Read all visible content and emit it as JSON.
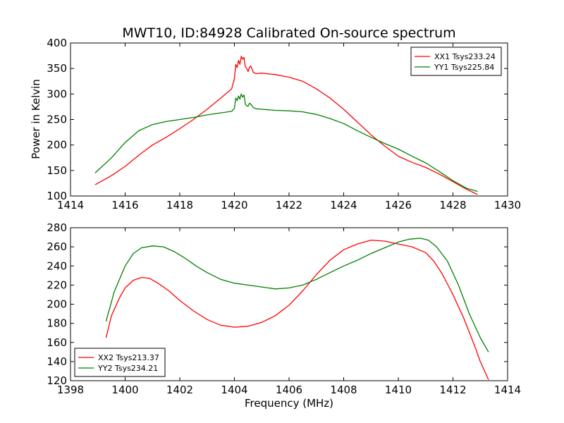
{
  "figure": {
    "title": "MWT10, ID:84928 Calibrated On-source spectrum",
    "ylabel": "Power in Kelvin",
    "xlabel": "Frequency (MHz)"
  },
  "chart_data": [
    {
      "type": "line",
      "xlim": [
        1414,
        1430
      ],
      "ylim": [
        100,
        400
      ],
      "xticks": [
        1414,
        1416,
        1418,
        1420,
        1422,
        1424,
        1426,
        1428,
        1430
      ],
      "yticks": [
        100,
        150,
        200,
        250,
        300,
        350,
        400
      ],
      "grid": false,
      "legend_position": "top-right",
      "series": [
        {
          "name": "XX1 Tsys233.24",
          "color": "#ff0000",
          "x": [
            1414.9,
            1415.5,
            1416.0,
            1416.5,
            1417.0,
            1417.5,
            1418.0,
            1418.5,
            1419.0,
            1419.5,
            1419.9,
            1420.0,
            1420.05,
            1420.1,
            1420.15,
            1420.2,
            1420.25,
            1420.3,
            1420.35,
            1420.4,
            1420.45,
            1420.5,
            1420.55,
            1420.6,
            1420.7,
            1420.8,
            1421.0,
            1421.5,
            1422.0,
            1422.5,
            1423.0,
            1423.5,
            1424.0,
            1424.5,
            1425.0,
            1425.5,
            1426.0,
            1426.5,
            1427.0,
            1427.5,
            1428.0,
            1428.5,
            1428.9
          ],
          "y": [
            122,
            140,
            158,
            180,
            200,
            215,
            232,
            250,
            270,
            292,
            310,
            330,
            358,
            352,
            366,
            358,
            374,
            368,
            372,
            354,
            350,
            344,
            352,
            355,
            342,
            340,
            341,
            338,
            333,
            325,
            310,
            292,
            270,
            245,
            220,
            198,
            178,
            166,
            156,
            143,
            128,
            113,
            103
          ]
        },
        {
          "name": "YY1 Tsys225.84",
          "color": "#008000",
          "x": [
            1414.9,
            1415.5,
            1416.0,
            1416.5,
            1417.0,
            1417.5,
            1418.0,
            1418.5,
            1419.0,
            1419.5,
            1419.9,
            1420.0,
            1420.05,
            1420.1,
            1420.15,
            1420.2,
            1420.25,
            1420.3,
            1420.35,
            1420.4,
            1420.45,
            1420.5,
            1420.55,
            1420.6,
            1420.7,
            1420.8,
            1421.0,
            1421.5,
            1422.0,
            1422.5,
            1423.0,
            1423.5,
            1424.0,
            1424.5,
            1425.0,
            1425.5,
            1426.0,
            1426.5,
            1427.0,
            1427.5,
            1428.0,
            1428.5,
            1428.9
          ],
          "y": [
            145,
            175,
            205,
            228,
            240,
            246,
            250,
            254,
            259,
            263,
            266,
            272,
            292,
            287,
            296,
            290,
            300,
            294,
            298,
            280,
            277,
            276,
            282,
            280,
            273,
            271,
            270,
            268,
            267,
            265,
            260,
            252,
            242,
            228,
            215,
            203,
            192,
            178,
            165,
            148,
            130,
            115,
            109
          ]
        }
      ]
    },
    {
      "type": "line",
      "xlim": [
        1398,
        1414
      ],
      "ylim": [
        120,
        280
      ],
      "xticks": [
        1398,
        1400,
        1402,
        1404,
        1406,
        1408,
        1410,
        1412,
        1414
      ],
      "yticks": [
        120,
        140,
        160,
        180,
        200,
        220,
        240,
        260,
        280
      ],
      "grid": false,
      "legend_position": "bottom-left",
      "series": [
        {
          "name": "XX2 Tsys213.37",
          "color": "#ff0000",
          "x": [
            1399.3,
            1399.5,
            1399.8,
            1400.0,
            1400.3,
            1400.6,
            1400.9,
            1401.2,
            1401.6,
            1402.0,
            1402.5,
            1403.0,
            1403.5,
            1404.0,
            1404.5,
            1405.0,
            1405.5,
            1406.0,
            1406.5,
            1407.0,
            1407.5,
            1408.0,
            1408.5,
            1409.0,
            1409.5,
            1410.0,
            1410.5,
            1411.0,
            1411.3,
            1411.6,
            1412.0,
            1412.4,
            1412.8,
            1413.0,
            1413.3
          ],
          "y": [
            165,
            188,
            207,
            217,
            225,
            228,
            227,
            222,
            214,
            204,
            193,
            184,
            178,
            176,
            177,
            181,
            188,
            199,
            214,
            231,
            246,
            257,
            263,
            267,
            266,
            263,
            260,
            254,
            245,
            232,
            210,
            185,
            156,
            140,
            121
          ]
        },
        {
          "name": "YY2 Tsys234.21",
          "color": "#008000",
          "x": [
            1399.3,
            1399.6,
            1400.0,
            1400.3,
            1400.6,
            1401.0,
            1401.4,
            1401.8,
            1402.2,
            1402.6,
            1403.0,
            1403.5,
            1404.0,
            1404.5,
            1405.0,
            1405.5,
            1406.0,
            1406.5,
            1407.0,
            1407.5,
            1408.0,
            1408.5,
            1409.0,
            1409.5,
            1410.0,
            1410.4,
            1410.8,
            1411.1,
            1411.4,
            1411.8,
            1412.2,
            1412.6,
            1413.0,
            1413.3
          ],
          "y": [
            182,
            213,
            240,
            253,
            259,
            261,
            260,
            255,
            248,
            240,
            233,
            226,
            222,
            220,
            218,
            216,
            217,
            220,
            226,
            233,
            240,
            246,
            253,
            259,
            265,
            268,
            269,
            267,
            260,
            245,
            220,
            190,
            165,
            150
          ]
        }
      ]
    }
  ]
}
